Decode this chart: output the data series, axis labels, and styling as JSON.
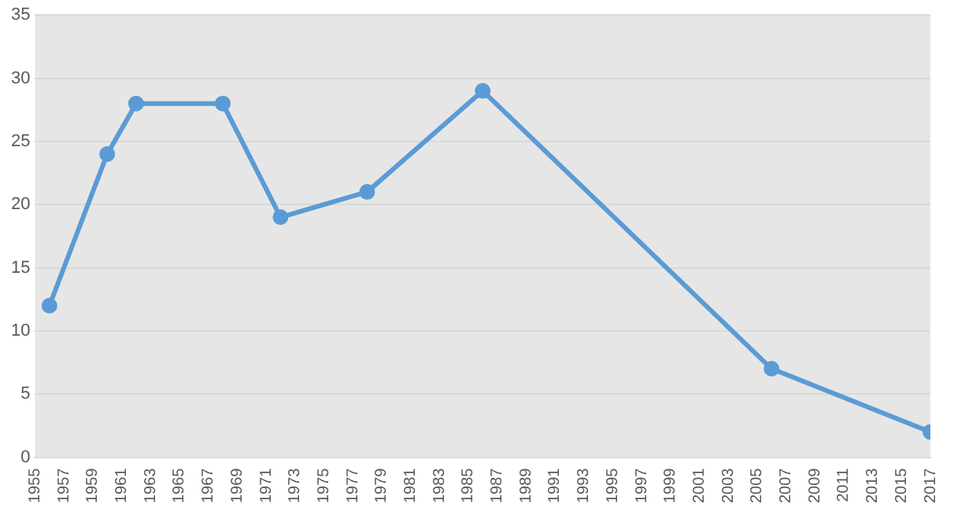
{
  "chart_data": {
    "type": "line",
    "x": [
      1956,
      1960,
      1962,
      1968,
      1972,
      1978,
      1986,
      2006,
      2017
    ],
    "series": [
      {
        "color": "#5b9bd5",
        "values": [
          12,
          24,
          28,
          28,
          19,
          21,
          29,
          7,
          2
        ]
      }
    ],
    "xlim": [
      1955,
      2017
    ],
    "xticks": [
      1955,
      1957,
      1959,
      1961,
      1963,
      1965,
      1967,
      1969,
      1971,
      1973,
      1975,
      1977,
      1979,
      1981,
      1983,
      1985,
      1987,
      1989,
      1991,
      1993,
      1995,
      1997,
      1999,
      2001,
      2003,
      2005,
      2007,
      2009,
      2011,
      2013,
      2015,
      2017
    ],
    "ylim": [
      0,
      35
    ],
    "yticks": [
      0,
      5,
      10,
      15,
      20,
      25,
      30,
      35
    ],
    "grid": "y",
    "legend": false,
    "marker": "circle",
    "line_style": "solid"
  }
}
